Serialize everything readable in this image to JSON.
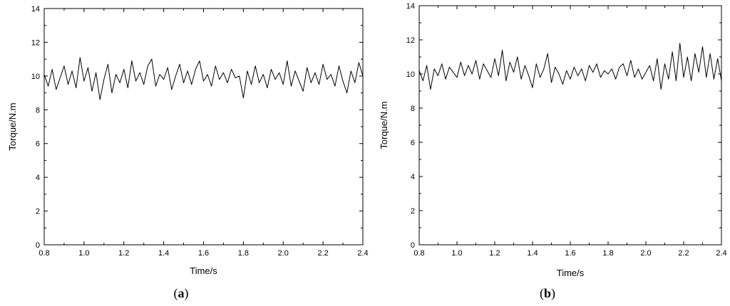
{
  "chart_data": [
    {
      "type": "line",
      "panel": "(a)",
      "xlabel": "Time/s",
      "ylabel": "Torque/N.m",
      "xlim": [
        0.8,
        2.4
      ],
      "ylim": [
        0,
        14
      ],
      "xticks": [
        "0.8",
        "1.0",
        "1.2",
        "1.4",
        "1.6",
        "1.8",
        "2.0",
        "2.2",
        "2.4"
      ],
      "yticks": [
        "0",
        "2",
        "4",
        "6",
        "8",
        "10",
        "12",
        "14"
      ],
      "grid": false,
      "line_color": "#000000",
      "series": [
        {
          "x": [
            0.8,
            0.82,
            0.84,
            0.86,
            0.88,
            0.9,
            0.92,
            0.94,
            0.96,
            0.98,
            1.0,
            1.02,
            1.04,
            1.06,
            1.08,
            1.1,
            1.12,
            1.14,
            1.16,
            1.18,
            1.2,
            1.22,
            1.24,
            1.26,
            1.28,
            1.3,
            1.32,
            1.34,
            1.36,
            1.38,
            1.4,
            1.42,
            1.44,
            1.46,
            1.48,
            1.5,
            1.52,
            1.54,
            1.56,
            1.58,
            1.6,
            1.62,
            1.64,
            1.66,
            1.68,
            1.7,
            1.72,
            1.74,
            1.76,
            1.78,
            1.8,
            1.82,
            1.84,
            1.86,
            1.88,
            1.9,
            1.92,
            1.94,
            1.96,
            1.98,
            2.0,
            2.02,
            2.04,
            2.06,
            2.08,
            2.1,
            2.12,
            2.14,
            2.16,
            2.18,
            2.2,
            2.22,
            2.24,
            2.26,
            2.28,
            2.3,
            2.32,
            2.34,
            2.36,
            2.38,
            2.4
          ],
          "values": [
            10.1,
            9.4,
            10.4,
            9.2,
            9.9,
            10.6,
            9.5,
            10.3,
            9.3,
            11.1,
            9.7,
            10.5,
            9.1,
            10.2,
            8.6,
            9.8,
            10.7,
            9.0,
            10.1,
            9.6,
            10.4,
            9.3,
            10.9,
            9.7,
            10.2,
            9.5,
            10.6,
            11.0,
            9.4,
            10.1,
            9.8,
            10.5,
            9.2,
            10.0,
            10.7,
            9.6,
            10.3,
            9.5,
            10.4,
            10.9,
            9.7,
            10.1,
            9.4,
            10.6,
            9.8,
            10.2,
            9.6,
            10.4,
            9.9,
            10.0,
            8.7,
            10.3,
            9.5,
            10.6,
            9.6,
            10.1,
            9.3,
            10.4,
            9.8,
            10.2,
            9.5,
            10.9,
            9.4,
            10.3,
            9.7,
            9.1,
            10.5,
            9.6,
            10.2,
            9.5,
            10.7,
            9.8,
            10.1,
            9.4,
            10.6,
            9.7,
            9.0,
            10.3,
            9.6,
            10.8,
            10.0
          ]
        }
      ]
    },
    {
      "type": "line",
      "panel": "(b)",
      "xlabel": "Time/s",
      "ylabel": "Torque/N.m",
      "xlim": [
        0.8,
        2.4
      ],
      "ylim": [
        0,
        14
      ],
      "xticks": [
        "0.8",
        "1.0",
        "1.2",
        "1.4",
        "1.6",
        "1.8",
        "2.0",
        "2.2",
        "2.4"
      ],
      "yticks": [
        "0",
        "2",
        "4",
        "6",
        "8",
        "10",
        "12",
        "14"
      ],
      "grid": false,
      "line_color": "#000000",
      "series": [
        {
          "x": [
            0.8,
            0.82,
            0.84,
            0.86,
            0.88,
            0.9,
            0.92,
            0.94,
            0.96,
            0.98,
            1.0,
            1.02,
            1.04,
            1.06,
            1.08,
            1.1,
            1.12,
            1.14,
            1.16,
            1.18,
            1.2,
            1.22,
            1.24,
            1.26,
            1.28,
            1.3,
            1.32,
            1.34,
            1.36,
            1.38,
            1.4,
            1.42,
            1.44,
            1.46,
            1.48,
            1.5,
            1.52,
            1.54,
            1.56,
            1.58,
            1.6,
            1.62,
            1.64,
            1.66,
            1.68,
            1.7,
            1.72,
            1.74,
            1.76,
            1.78,
            1.8,
            1.82,
            1.84,
            1.86,
            1.88,
            1.9,
            1.92,
            1.94,
            1.96,
            1.98,
            2.0,
            2.02,
            2.04,
            2.06,
            2.08,
            2.1,
            2.12,
            2.14,
            2.16,
            2.18,
            2.2,
            2.22,
            2.24,
            2.26,
            2.28,
            2.3,
            2.32,
            2.34,
            2.36,
            2.38,
            2.4
          ],
          "values": [
            10.2,
            9.6,
            10.5,
            9.1,
            10.3,
            9.9,
            10.6,
            9.7,
            10.4,
            10.1,
            9.8,
            10.7,
            9.9,
            10.5,
            10.0,
            10.8,
            9.7,
            10.6,
            10.2,
            9.8,
            10.9,
            9.9,
            11.4,
            9.6,
            10.7,
            10.1,
            11.0,
            9.7,
            10.5,
            9.9,
            9.2,
            10.6,
            9.8,
            10.3,
            11.2,
            9.5,
            10.4,
            10.0,
            9.4,
            10.2,
            9.7,
            10.4,
            9.9,
            10.3,
            9.6,
            10.5,
            10.1,
            10.6,
            9.8,
            10.2,
            10.0,
            10.3,
            9.7,
            10.4,
            10.6,
            9.9,
            10.8,
            9.8,
            10.3,
            9.7,
            10.1,
            10.5,
            9.6,
            10.9,
            9.1,
            10.6,
            9.7,
            11.3,
            9.6,
            11.8,
            9.8,
            11.0,
            9.6,
            11.2,
            10.1,
            11.6,
            9.8,
            11.2,
            9.7,
            10.9,
            9.6
          ]
        }
      ]
    }
  ]
}
